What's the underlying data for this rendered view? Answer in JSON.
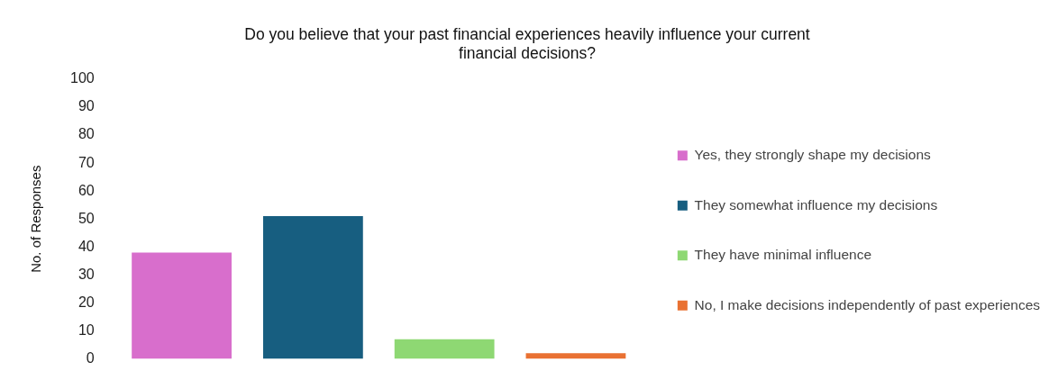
{
  "chart_data": {
    "type": "bar",
    "title": "Do you believe that your past financial experiences heavily influence your current financial decisions?",
    "ylabel": "No. of Responses",
    "categories": [
      null,
      null,
      null,
      null
    ],
    "stacked": true,
    "series": [
      {
        "name": "Yes, they strongly shape my decisions",
        "color": "#d86ecc",
        "values": [
          38,
          null,
          null,
          null
        ]
      },
      {
        "name": "They somewhat influence my decisions",
        "color": "#175e80",
        "values": [
          null,
          51,
          null,
          null
        ]
      },
      {
        "name": "They have minimal influence",
        "color": "#8ed873",
        "values": [
          null,
          null,
          7,
          null
        ]
      },
      {
        "name": "No, I make decisions independently of past experiences",
        "color": "#e97132",
        "values": [
          null,
          null,
          null,
          2
        ]
      }
    ],
    "ylim": [
      0,
      100
    ],
    "yticks": [
      0,
      10,
      20,
      30,
      40,
      50,
      60,
      70,
      80,
      90,
      100
    ],
    "grid": false,
    "legend": "right",
    "tick_labels": "y"
  }
}
